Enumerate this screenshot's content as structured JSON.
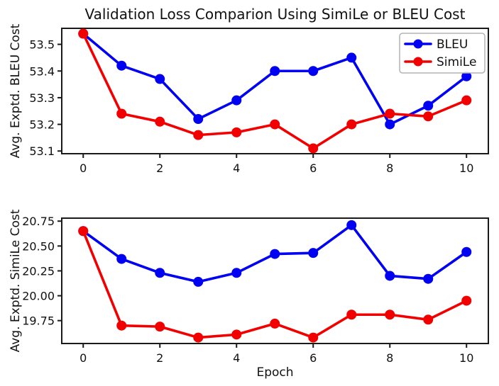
{
  "figure_title": "Validation Loss Comparion Using SimiLe or BLEU Cost",
  "legend": {
    "position": "upper-right",
    "entries": [
      {
        "label": "BLEU",
        "color": "#0000f2"
      },
      {
        "label": "SimiLe",
        "color": "#f20000"
      }
    ]
  },
  "chart_data": [
    {
      "type": "line",
      "title": "Validation Loss Comparion Using SimiLe or BLEU Cost",
      "ylabel": "Avg. Exptd. BLEU Cost",
      "xlabel": "",
      "x": [
        0,
        1,
        2,
        3,
        4,
        5,
        6,
        7,
        8,
        9,
        10
      ],
      "series": [
        {
          "name": "BLEU",
          "color": "#0000f2",
          "values": [
            53.54,
            53.42,
            53.37,
            53.22,
            53.29,
            53.4,
            53.4,
            53.45,
            53.2,
            53.27,
            53.38
          ]
        },
        {
          "name": "SimiLe",
          "color": "#f20000",
          "values": [
            53.54,
            53.24,
            53.21,
            53.16,
            53.17,
            53.2,
            53.11,
            53.2,
            53.24,
            53.23,
            53.29
          ]
        }
      ],
      "xticks": [
        0,
        2,
        4,
        6,
        8,
        10
      ],
      "xtick_labels": [
        "0",
        "2",
        "4",
        "6",
        "8",
        "10"
      ],
      "yticks": [
        53.1,
        53.2,
        53.3,
        53.4,
        53.5
      ],
      "ytick_labels": [
        "53.1",
        "53.2",
        "53.3",
        "53.4",
        "53.5"
      ],
      "xlim": [
        -0.56,
        10.57
      ],
      "ylim": [
        53.09,
        53.56
      ],
      "grid": false,
      "legend": true
    },
    {
      "type": "line",
      "title": "",
      "ylabel": "Avg. Exptd. SimiLe Cost",
      "xlabel": "Epoch",
      "x": [
        0,
        1,
        2,
        3,
        4,
        5,
        6,
        7,
        8,
        9,
        10
      ],
      "series": [
        {
          "name": "BLEU",
          "color": "#0000f2",
          "values": [
            20.65,
            20.37,
            20.23,
            20.14,
            20.23,
            20.42,
            20.43,
            20.71,
            20.2,
            20.17,
            20.44
          ]
        },
        {
          "name": "SimiLe",
          "color": "#f20000",
          "values": [
            20.65,
            19.7,
            19.69,
            19.58,
            19.61,
            19.72,
            19.58,
            19.81,
            19.81,
            19.76,
            19.95
          ]
        }
      ],
      "xticks": [
        0,
        2,
        4,
        6,
        8,
        10
      ],
      "xtick_labels": [
        "0",
        "2",
        "4",
        "6",
        "8",
        "10"
      ],
      "yticks": [
        19.75,
        20.0,
        20.25,
        20.5,
        20.75
      ],
      "ytick_labels": [
        "19.75",
        "20.00",
        "20.25",
        "20.50",
        "20.75"
      ],
      "xlim": [
        -0.56,
        10.57
      ],
      "ylim": [
        19.52,
        20.78
      ],
      "grid": false,
      "legend": false
    }
  ]
}
